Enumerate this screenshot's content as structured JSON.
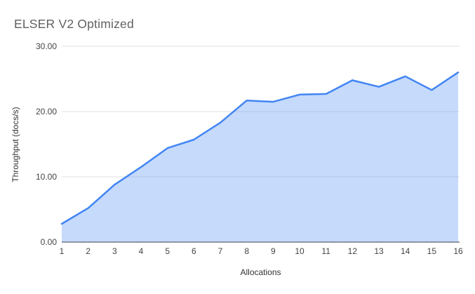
{
  "chart_data": {
    "type": "area",
    "title": "ELSER V2 Optimized",
    "xlabel": "Allocations",
    "ylabel": "Throughput (docs/s)",
    "x": [
      1,
      2,
      3,
      4,
      5,
      6,
      7,
      8,
      9,
      10,
      11,
      12,
      13,
      14,
      15,
      16
    ],
    "series": [
      {
        "name": "Throughput (docs/s)",
        "values": [
          2.8,
          5.2,
          8.8,
          11.5,
          14.4,
          15.7,
          18.3,
          21.7,
          21.5,
          22.6,
          22.7,
          24.8,
          23.8,
          25.4,
          23.3,
          26.0
        ]
      }
    ],
    "ylim": [
      0,
      30
    ],
    "yticks": [
      0,
      10,
      20,
      30
    ],
    "ytick_labels": [
      "0.00",
      "10.00",
      "20.00",
      "30.00"
    ],
    "grid": true,
    "legend": "none",
    "colors": {
      "line": "#4285f4",
      "area_fill": "rgba(66,133,244,0.3)",
      "gridline": "#e2e2e2",
      "baseline": "#333333",
      "title_text": "#616161",
      "tick_text": "#444444",
      "axis_title_text": "#333333"
    }
  }
}
